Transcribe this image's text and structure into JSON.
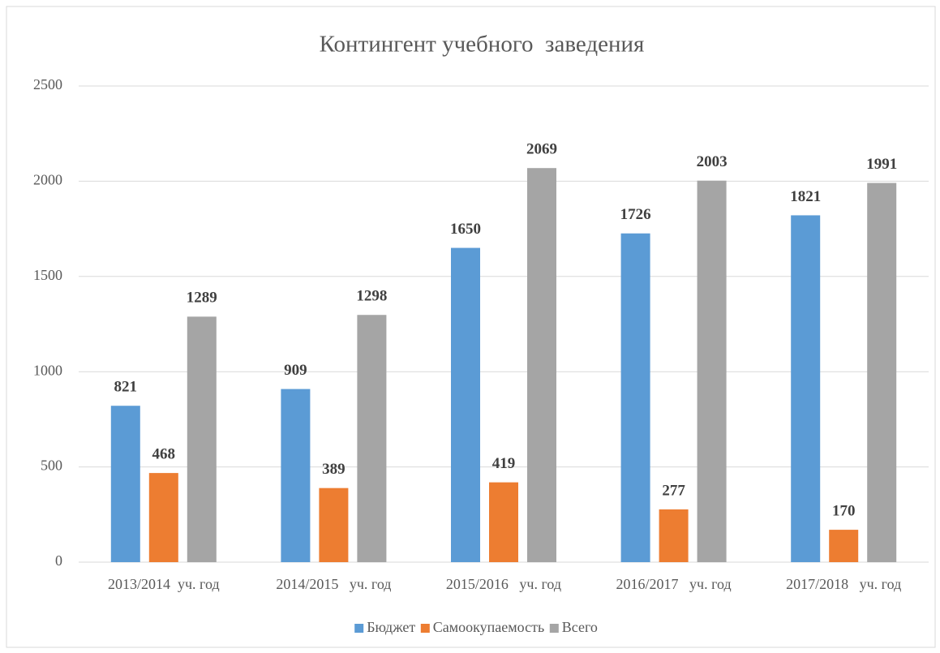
{
  "chart_data": {
    "type": "bar",
    "title": "Контингент учебного  заведения",
    "categories": [
      "2013/2014  уч. год",
      "2014/2015   уч. год",
      "2015/2016   уч. год",
      "2016/2017   уч. год",
      "2017/2018   уч. год"
    ],
    "series": [
      {
        "name": "Бюджет",
        "color": "#5b9bd5",
        "values": [
          821,
          909,
          1650,
          1726,
          1821
        ]
      },
      {
        "name": "Самоокупаемость",
        "color": "#ed7d31",
        "values": [
          468,
          389,
          419,
          277,
          170
        ]
      },
      {
        "name": "Всего",
        "color": "#a5a5a5",
        "values": [
          1289,
          1298,
          2069,
          2003,
          1991
        ]
      }
    ],
    "ylim": [
      0,
      2500
    ],
    "yticks": [
      0,
      500,
      1000,
      1500,
      2000,
      2500
    ],
    "grid": true,
    "legend": "bottom"
  }
}
